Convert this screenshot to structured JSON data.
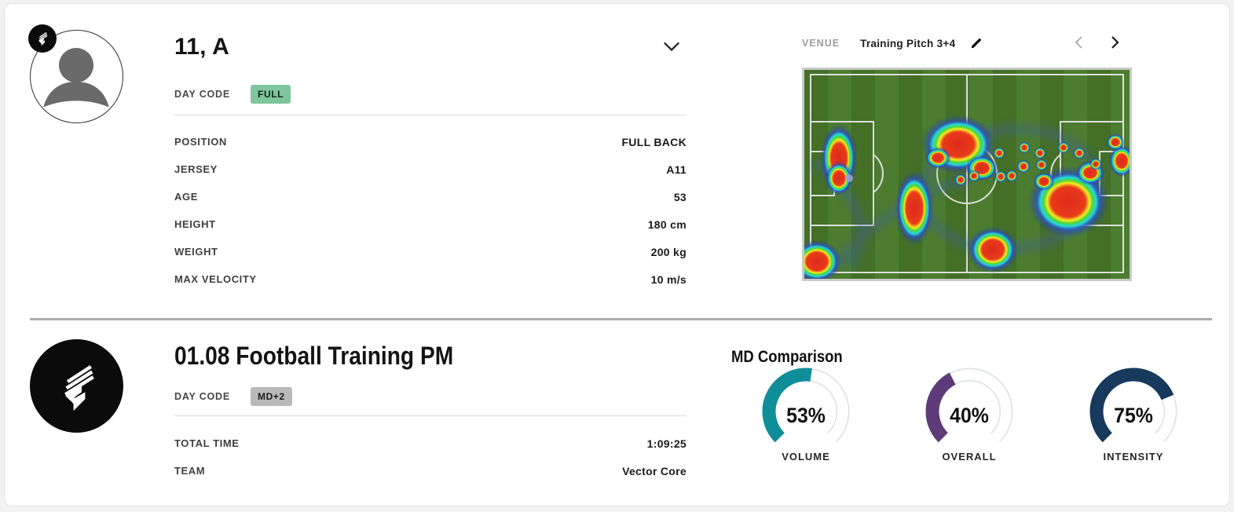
{
  "player_card": {
    "title": "11, A",
    "day_code_label": "DAY CODE",
    "day_code_value": "FULL",
    "info_rows": [
      {
        "label": "POSITION",
        "value": "FULL BACK"
      },
      {
        "label": "JERSEY",
        "value": "A11"
      },
      {
        "label": "AGE",
        "value": "53"
      },
      {
        "label": "HEIGHT",
        "value": "180 cm"
      },
      {
        "label": "WEIGHT",
        "value": "200 kg"
      },
      {
        "label": "MAX VELOCITY",
        "value": "10 m/s"
      }
    ],
    "venue_label": "VENUE",
    "venue_value": "Training Pitch 3+4"
  },
  "session_card": {
    "title": "01.08 Football Training PM",
    "day_code_label": "DAY CODE",
    "day_code_value": "MD+2",
    "info_rows": [
      {
        "label": "TOTAL TIME",
        "value": "1:09:25"
      },
      {
        "label": "TEAM",
        "value": "Vector Core"
      }
    ]
  },
  "chart_data": {
    "type": "gauge",
    "title": "MD Comparison",
    "arc_degrees": 270,
    "range": [
      0,
      100
    ],
    "gauges": [
      {
        "label": "VOLUME",
        "value": 53,
        "unit": "%",
        "color": "#0f8e99"
      },
      {
        "label": "OVERALL",
        "value": 40,
        "unit": "%",
        "color": "#5d3b79"
      },
      {
        "label": "INTENSITY",
        "value": 75,
        "unit": "%",
        "color": "#17395c"
      }
    ],
    "track_color": "#ffffff",
    "track_outline_color": "#dfe3e6"
  },
  "colors": {
    "badge_full_bg": "#7fc59d",
    "badge_md_bg": "#b9b9b9",
    "divider": "#acacac",
    "pitch_green_light": "#4c7c2f",
    "pitch_green_dark": "#436f27"
  }
}
